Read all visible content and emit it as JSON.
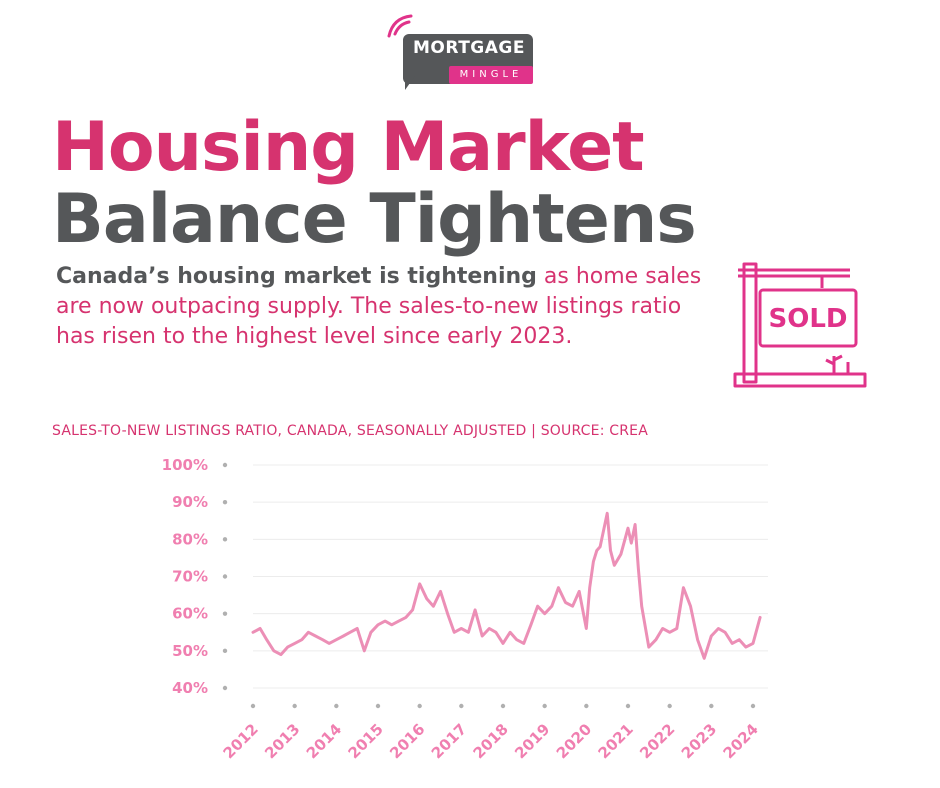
{
  "brand": {
    "top": "MORTGAGE",
    "bottom": "MINGLE",
    "accent": "#e0338a",
    "dark": "#555759"
  },
  "title": {
    "line1": "Housing Market",
    "line2": "Balance Tightens"
  },
  "intro": {
    "lead": "Canada’s housing market is tightening",
    "rest": " as home sales are now outpacing supply. The sales-to-new listings ratio has risen to the highest level since early 2023."
  },
  "sign": {
    "label": "SOLD",
    "icon": "sold-sign-icon"
  },
  "chart_data": {
    "type": "line",
    "title": "SALES-TO-NEW LISTINGS RATIO, CANADA, SEASONALLY ADJUSTED | SOURCE: CREA",
    "xlabel": "",
    "ylabel": "",
    "ylim": [
      40,
      100
    ],
    "xlim": [
      2011.75,
      2024.6
    ],
    "y_ticks": [
      100,
      90,
      80,
      70,
      60,
      50,
      40
    ],
    "y_tick_labels": [
      "100%",
      "90%",
      "80%",
      "70%",
      "60%",
      "50%",
      "40%"
    ],
    "x_ticks": [
      "2012",
      "2013",
      "2014",
      "2015",
      "2016",
      "2017",
      "2018",
      "2019",
      "2020",
      "2021",
      "2022",
      "2023",
      "2024"
    ],
    "grid": true,
    "line_color": "#ec8fb6",
    "series": [
      {
        "x": [
          2012.0,
          2012.17,
          2012.33,
          2012.5,
          2012.67,
          2012.83,
          2013.0,
          2013.17,
          2013.33,
          2013.5,
          2013.67,
          2013.83,
          2014.0,
          2014.17,
          2014.33,
          2014.5,
          2014.67,
          2014.83,
          2015.0,
          2015.17,
          2015.33,
          2015.5,
          2015.67,
          2015.83,
          2016.0,
          2016.17,
          2016.33,
          2016.5,
          2016.67,
          2016.83,
          2017.0,
          2017.17,
          2017.33,
          2017.5,
          2017.67,
          2017.83,
          2018.0,
          2018.17,
          2018.33,
          2018.5,
          2018.67,
          2018.83,
          2019.0,
          2019.17,
          2019.33,
          2019.5,
          2019.67,
          2019.83,
          2020.0,
          2020.08,
          2020.17,
          2020.25,
          2020.33,
          2020.5,
          2020.58,
          2020.67,
          2020.83,
          2021.0,
          2021.08,
          2021.17,
          2021.25,
          2021.33,
          2021.5,
          2021.67,
          2021.83,
          2022.0,
          2022.17,
          2022.33,
          2022.5,
          2022.67,
          2022.83,
          2023.0,
          2023.17,
          2023.33,
          2023.5,
          2023.67,
          2023.83,
          2024.0,
          2024.17
        ],
        "y": [
          55,
          56,
          53,
          50,
          49,
          51,
          52,
          53,
          55,
          54,
          53,
          52,
          53,
          54,
          55,
          56,
          50,
          55,
          57,
          58,
          57,
          58,
          59,
          61,
          68,
          64,
          62,
          66,
          60,
          55,
          56,
          55,
          61,
          54,
          56,
          55,
          52,
          55,
          53,
          52,
          57,
          62,
          60,
          62,
          67,
          63,
          62,
          66,
          56,
          67,
          74,
          77,
          78,
          87,
          77,
          73,
          76,
          83,
          79,
          84,
          72,
          62,
          51,
          53,
          56,
          55,
          56,
          67,
          62,
          53,
          48,
          54,
          56,
          55,
          52,
          53,
          51,
          52,
          59
        ]
      }
    ]
  }
}
